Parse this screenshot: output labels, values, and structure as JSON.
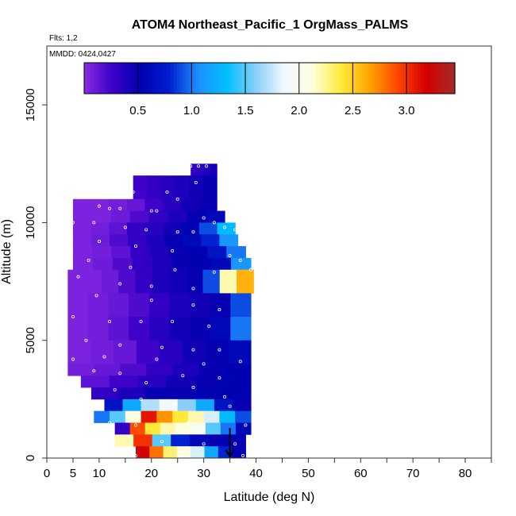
{
  "chart_data": {
    "type": "heatmap",
    "title": "ATOM4 Northeast_Pacific_1 OrgMass_PALMS",
    "flights_label": "Flts: 1,2",
    "dates_label": "MMDD: 0424,0427",
    "xlabel": "Latitude (deg N)",
    "ylabel": "Altitude (m)",
    "xlim": [
      0,
      85
    ],
    "ylim": [
      0,
      17500
    ],
    "x_tick_labels": [
      "0",
      "5",
      "10",
      "20",
      "30",
      "40",
      "50",
      "60",
      "70",
      "80"
    ],
    "x_tick_values": [
      0,
      5,
      10,
      20,
      30,
      40,
      50,
      60,
      70,
      80
    ],
    "y_tick_labels": [
      "0",
      "5000",
      "10000",
      "15000"
    ],
    "y_tick_values": [
      0,
      5000,
      10000,
      15000
    ],
    "colorbar": {
      "min": 0,
      "max": 3.45,
      "tick_labels": [
        "0.5",
        "1.0",
        "1.5",
        "2.0",
        "2.5",
        "3.0"
      ],
      "tick_values": [
        0.5,
        1.0,
        1.5,
        2.0,
        2.5,
        3.0
      ],
      "colors": [
        "#8a2be2",
        "#3a00c8",
        "#0000b0",
        "#0020d0",
        "#1e90ff",
        "#00bfff",
        "#87cefa",
        "#f0f8ff",
        "#ffffe0",
        "#ffeb3b",
        "#ffa500",
        "#ff4500",
        "#d40000",
        "#a52a2a"
      ]
    },
    "bands": [
      {
        "y0": 12000,
        "y1": 12500,
        "x0": 27.5,
        "x1": 32.5,
        "values": [
          0.3,
          0.35,
          0.4,
          0.45
        ]
      },
      {
        "y0": 11000,
        "y1": 12000,
        "x0": 16.5,
        "x1": 32.5,
        "values": [
          0.25,
          0.3,
          0.35,
          0.4,
          0.45,
          0.5
        ]
      },
      {
        "y0": 10500,
        "y1": 11000,
        "x0": 5,
        "x1": 32.5,
        "values": [
          0.05,
          0.05,
          0.08,
          0.12,
          0.25,
          0.35,
          0.45,
          0.5
        ]
      },
      {
        "y0": 10000,
        "y1": 10500,
        "x0": 5,
        "x1": 34,
        "values": [
          0.05,
          0.05,
          0.1,
          0.2,
          0.3,
          0.4,
          0.5,
          0.6
        ]
      },
      {
        "y0": 9500,
        "y1": 10000,
        "x0": 5,
        "x1": 36,
        "values": [
          0.05,
          0.08,
          0.15,
          0.3,
          0.35,
          0.45,
          0.55,
          0.9,
          1.3
        ]
      },
      {
        "y0": 9000,
        "y1": 9500,
        "x0": 5,
        "x1": 36.5,
        "values": [
          0.05,
          0.1,
          0.2,
          0.3,
          0.4,
          0.5,
          0.6,
          0.8,
          1.1
        ]
      },
      {
        "y0": 8500,
        "y1": 9000,
        "x0": 5,
        "x1": 38,
        "values": [
          0.05,
          0.08,
          0.15,
          0.3,
          0.4,
          0.5,
          0.55,
          0.7,
          1.0
        ]
      },
      {
        "y0": 8000,
        "y1": 8500,
        "x0": 5,
        "x1": 39,
        "values": [
          0.05,
          0.1,
          0.2,
          0.3,
          0.4,
          0.5,
          0.55,
          0.6,
          1.1
        ]
      },
      {
        "y0": 7000,
        "y1": 8000,
        "x0": 4,
        "x1": 39.5,
        "values": [
          0.05,
          0.05,
          0.1,
          0.2,
          0.3,
          0.4,
          0.45,
          0.5,
          0.9,
          2.2,
          2.6
        ]
      },
      {
        "y0": 6000,
        "y1": 7000,
        "x0": 4,
        "x1": 39,
        "values": [
          0.05,
          0.08,
          0.12,
          0.2,
          0.3,
          0.4,
          0.45,
          0.5,
          0.9
        ]
      },
      {
        "y0": 5000,
        "y1": 6000,
        "x0": 4,
        "x1": 39,
        "values": [
          0.05,
          0.08,
          0.15,
          0.25,
          0.35,
          0.45,
          0.5,
          0.6,
          1.0
        ]
      },
      {
        "y0": 4000,
        "y1": 5000,
        "x0": 4,
        "x1": 39,
        "values": [
          0.05,
          0.08,
          0.12,
          0.25,
          0.35,
          0.45,
          0.5,
          0.6
        ]
      },
      {
        "y0": 3500,
        "y1": 4000,
        "x0": 4,
        "x1": 39,
        "values": [
          0.08,
          0.12,
          0.2,
          0.3,
          0.4,
          0.5,
          0.55
        ]
      },
      {
        "y0": 3000,
        "y1": 3500,
        "x0": 6.5,
        "x1": 39,
        "values": [
          0.15,
          0.25,
          0.35,
          0.45,
          0.5,
          0.55
        ]
      },
      {
        "y0": 2500,
        "y1": 3000,
        "x0": 8.5,
        "x1": 39,
        "values": [
          0.3,
          0.4,
          0.5,
          0.5,
          0.55,
          0.55
        ]
      },
      {
        "y0": 2000,
        "y1": 2500,
        "x0": 11,
        "x1": 39,
        "values": [
          0.7,
          1.2,
          1.7,
          1.9,
          1.6,
          1.2,
          0.7,
          0.5
        ]
      },
      {
        "y0": 1500,
        "y1": 2000,
        "x0": 9,
        "x1": 39,
        "values": [
          1.0,
          1.5,
          2.1,
          3.1,
          2.7,
          2.4,
          2.2,
          1.8,
          1.3,
          0.9
        ]
      },
      {
        "y0": 1000,
        "y1": 1500,
        "x0": 13,
        "x1": 39,
        "values": [
          0.3,
          2.9,
          2.4,
          2.2,
          2.1,
          2.0,
          1.5,
          1.0,
          0.6
        ]
      },
      {
        "y0": 500,
        "y1": 1000,
        "x0": 13,
        "x1": 38,
        "values": [
          2.2,
          3.0,
          1.5,
          0.8,
          0.6,
          0.5,
          0.5
        ]
      },
      {
        "y0": 0,
        "y1": 500,
        "x0": 17,
        "x1": 38,
        "values": [
          3.2,
          2.8,
          2.3,
          2.1,
          1.8,
          1.2,
          0.8,
          0.5
        ]
      }
    ],
    "points": [
      {
        "x": 5.5,
        "y": 11300
      },
      {
        "x": 7.5,
        "y": 11300
      },
      {
        "x": 9,
        "y": 11300
      },
      {
        "x": 12,
        "y": 11300
      },
      {
        "x": 16.5,
        "y": 11300
      },
      {
        "x": 23,
        "y": 11300
      },
      {
        "x": 10,
        "y": 10700
      },
      {
        "x": 12,
        "y": 10600
      },
      {
        "x": 14,
        "y": 10600
      },
      {
        "x": 20,
        "y": 10500
      },
      {
        "x": 21,
        "y": 10500
      },
      {
        "x": 25,
        "y": 11000
      },
      {
        "x": 28.5,
        "y": 11700
      },
      {
        "x": 27.5,
        "y": 12400
      },
      {
        "x": 29,
        "y": 12400
      },
      {
        "x": 30.5,
        "y": 12400
      },
      {
        "x": 5,
        "y": 10000
      },
      {
        "x": 9,
        "y": 10000
      },
      {
        "x": 15,
        "y": 9800
      },
      {
        "x": 19,
        "y": 9700
      },
      {
        "x": 25,
        "y": 9600
      },
      {
        "x": 28,
        "y": 9600
      },
      {
        "x": 30,
        "y": 10200
      },
      {
        "x": 32,
        "y": 10000
      },
      {
        "x": 34,
        "y": 9800
      },
      {
        "x": 36,
        "y": 9700
      },
      {
        "x": 10,
        "y": 9200
      },
      {
        "x": 17,
        "y": 9000
      },
      {
        "x": 24,
        "y": 8800
      },
      {
        "x": 35,
        "y": 8600
      },
      {
        "x": 37,
        "y": 8400
      },
      {
        "x": 8,
        "y": 8400
      },
      {
        "x": 16,
        "y": 8100
      },
      {
        "x": 24.5,
        "y": 8000
      },
      {
        "x": 32,
        "y": 7900
      },
      {
        "x": 39,
        "y": 8000
      },
      {
        "x": 6,
        "y": 7700
      },
      {
        "x": 14,
        "y": 7400
      },
      {
        "x": 20,
        "y": 7300
      },
      {
        "x": 28,
        "y": 7200
      },
      {
        "x": 36,
        "y": 7300
      },
      {
        "x": 9.5,
        "y": 6900
      },
      {
        "x": 20,
        "y": 6700
      },
      {
        "x": 28,
        "y": 6500
      },
      {
        "x": 33,
        "y": 6300
      },
      {
        "x": 5,
        "y": 6000
      },
      {
        "x": 12,
        "y": 5800
      },
      {
        "x": 18,
        "y": 5800
      },
      {
        "x": 24,
        "y": 5800
      },
      {
        "x": 31,
        "y": 5600
      },
      {
        "x": 7.5,
        "y": 5000
      },
      {
        "x": 14,
        "y": 4800
      },
      {
        "x": 22,
        "y": 4700
      },
      {
        "x": 28,
        "y": 4600
      },
      {
        "x": 33,
        "y": 4600
      },
      {
        "x": 5,
        "y": 4200
      },
      {
        "x": 11,
        "y": 4300
      },
      {
        "x": 21,
        "y": 4200
      },
      {
        "x": 30,
        "y": 4000
      },
      {
        "x": 37,
        "y": 4100
      },
      {
        "x": 9,
        "y": 3700
      },
      {
        "x": 14,
        "y": 3600
      },
      {
        "x": 26,
        "y": 3500
      },
      {
        "x": 33,
        "y": 3400
      },
      {
        "x": 5,
        "y": 2900
      },
      {
        "x": 13,
        "y": 2900
      },
      {
        "x": 19,
        "y": 3200
      },
      {
        "x": 28,
        "y": 3000
      },
      {
        "x": 34,
        "y": 2600
      },
      {
        "x": 10,
        "y": 2200
      },
      {
        "x": 18,
        "y": 2500
      },
      {
        "x": 24.5,
        "y": 2300
      },
      {
        "x": 35,
        "y": 2200
      },
      {
        "x": 12,
        "y": 1500
      },
      {
        "x": 17,
        "y": 1400
      },
      {
        "x": 27,
        "y": 1500
      },
      {
        "x": 38,
        "y": 1400
      },
      {
        "x": 16,
        "y": 900
      },
      {
        "x": 22,
        "y": 700
      },
      {
        "x": 30,
        "y": 600
      },
      {
        "x": 36,
        "y": 600
      },
      {
        "x": 17,
        "y": 100
      },
      {
        "x": 26,
        "y": 100
      },
      {
        "x": 37.5,
        "y": 100
      }
    ],
    "arrow": {
      "x": 35,
      "y_top": 600,
      "y_bottom": 0
    }
  }
}
